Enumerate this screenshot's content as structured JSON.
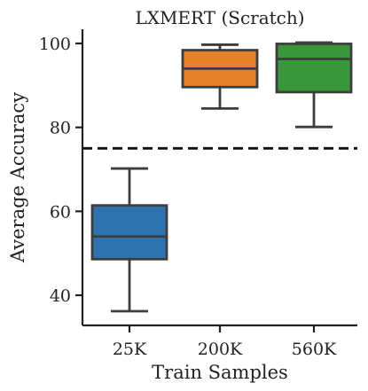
{
  "chart_data": {
    "type": "box",
    "title": "LXMERT (Scratch)",
    "xlabel": "Train Samples",
    "ylabel": "Average Accuracy",
    "ylim": [
      33,
      102
    ],
    "yticks": [
      40,
      60,
      80,
      100
    ],
    "categories": [
      "25K",
      "200K",
      "560K"
    ],
    "boxes": [
      {
        "category": "25K",
        "min": 36.2,
        "q1": 48.6,
        "median": 54.0,
        "q3": 61.4,
        "max": 70.2,
        "color": "#2f73ae"
      },
      {
        "category": "200K",
        "min": 84.5,
        "q1": 89.6,
        "median": 94.0,
        "q3": 98.4,
        "max": 99.7,
        "color": "#e58126"
      },
      {
        "category": "560K",
        "min": 80.1,
        "q1": 88.4,
        "median": 96.3,
        "q3": 99.9,
        "max": 100.2,
        "color": "#3a963a"
      }
    ],
    "reference_line": {
      "y": 75,
      "style": "dashed"
    },
    "grid": false,
    "legend": "none"
  }
}
